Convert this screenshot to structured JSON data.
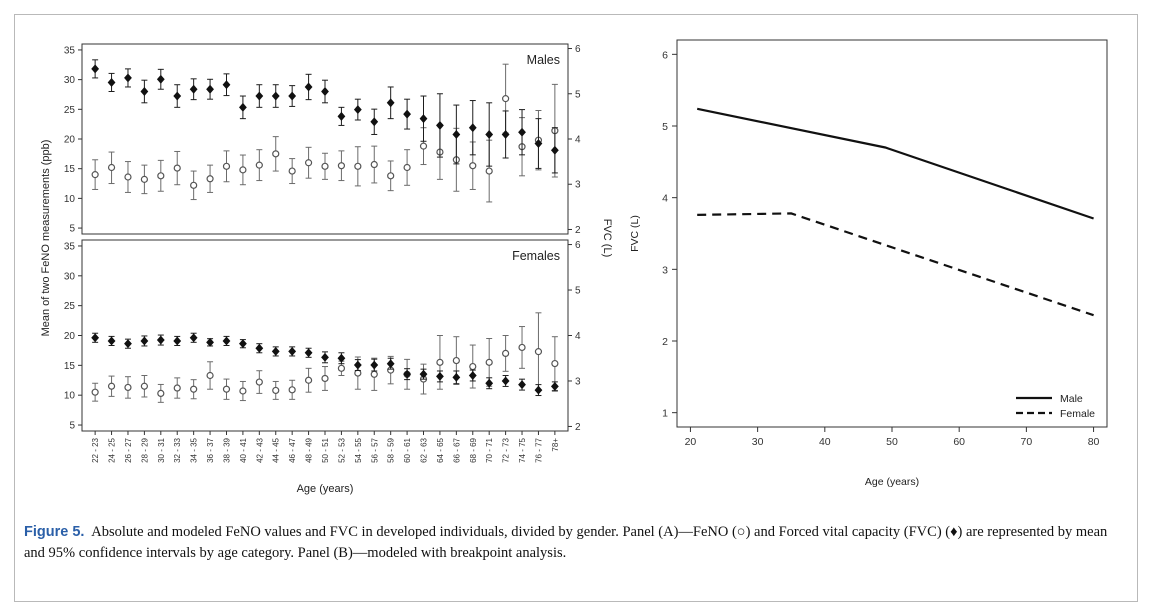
{
  "chart_data": [
    {
      "type": "scatter",
      "panel": "A-top",
      "title": "Males",
      "ylabel": "Mean of two FeNO measurements (ppb)",
      "y2label": "FVC (L)",
      "ylim": [
        4,
        36
      ],
      "y2lim": [
        1.9,
        6.1
      ],
      "yticks": [
        5,
        10,
        15,
        20,
        25,
        30,
        35
      ],
      "y2ticks": [
        2,
        3,
        4,
        5,
        6
      ],
      "series": [
        {
          "marker": "open-circle",
          "axis": "left",
          "values": [
            14.0,
            15.2,
            13.6,
            13.2,
            13.8,
            15.1,
            12.2,
            13.3,
            15.4,
            14.8,
            15.6,
            17.5,
            14.6,
            16.0,
            15.4,
            15.5,
            15.4,
            15.7,
            13.8,
            15.2,
            18.8,
            17.8,
            16.5,
            15.5,
            14.6,
            26.8,
            18.7,
            19.8,
            21.4
          ],
          "lower": [
            11.5,
            12.5,
            11.0,
            10.8,
            11.2,
            12.3,
            9.8,
            11.0,
            12.8,
            12.3,
            13.0,
            14.6,
            12.5,
            13.4,
            13.2,
            13.0,
            12.1,
            12.6,
            11.3,
            12.2,
            15.7,
            13.2,
            11.2,
            11.5,
            9.4,
            21.0,
            13.8,
            14.8,
            13.6
          ],
          "upper": [
            16.5,
            17.8,
            16.2,
            15.6,
            16.4,
            17.9,
            14.6,
            15.6,
            18.0,
            17.3,
            18.2,
            20.4,
            16.7,
            18.6,
            17.6,
            18.0,
            18.7,
            18.8,
            16.3,
            18.2,
            21.9,
            22.4,
            21.8,
            19.5,
            19.8,
            32.6,
            23.6,
            24.8,
            29.2
          ]
        },
        {
          "marker": "filled-diamond",
          "axis": "right",
          "values": [
            5.55,
            5.25,
            5.35,
            5.05,
            5.32,
            4.95,
            5.1,
            5.1,
            5.2,
            4.7,
            4.95,
            4.95,
            4.95,
            5.15,
            5.05,
            4.5,
            4.65,
            4.38,
            4.8,
            4.55,
            4.45,
            4.3,
            4.1,
            4.25,
            4.1,
            4.1,
            4.15,
            3.9,
            3.75
          ],
          "lower": [
            5.35,
            5.05,
            5.15,
            4.8,
            5.1,
            4.7,
            4.87,
            4.88,
            4.96,
            4.45,
            4.7,
            4.7,
            4.72,
            4.87,
            4.8,
            4.3,
            4.42,
            4.1,
            4.45,
            4.22,
            3.95,
            3.6,
            3.45,
            3.65,
            3.4,
            3.58,
            3.65,
            3.35,
            3.25
          ],
          "upper": [
            5.75,
            5.45,
            5.55,
            5.3,
            5.54,
            5.2,
            5.33,
            5.32,
            5.44,
            4.95,
            5.2,
            5.2,
            5.18,
            5.43,
            5.3,
            4.7,
            4.88,
            4.66,
            5.15,
            4.88,
            4.95,
            5.0,
            4.75,
            4.85,
            4.8,
            4.62,
            4.65,
            4.45,
            4.25
          ]
        }
      ]
    },
    {
      "type": "scatter",
      "panel": "A-bottom",
      "title": "Females",
      "xlabel": "Age (years)",
      "ylabel": "Mean of two FeNO measurements (ppb)",
      "y2label": "FVC (L)",
      "ylim": [
        4,
        36
      ],
      "y2lim": [
        1.9,
        6.1
      ],
      "yticks": [
        5,
        10,
        15,
        20,
        25,
        30,
        35
      ],
      "y2ticks": [
        2,
        3,
        4,
        5,
        6
      ],
      "categories": [
        "22 - 23",
        "24 - 25",
        "26 - 27",
        "28 - 29",
        "30 - 31",
        "32 - 33",
        "34 - 35",
        "36 - 37",
        "38 - 39",
        "40 - 41",
        "42 - 43",
        "44 - 45",
        "46 - 47",
        "48 - 49",
        "50 - 51",
        "52 - 53",
        "54 - 55",
        "56 - 57",
        "58 - 59",
        "60 - 61",
        "62 - 63",
        "64 - 65",
        "66 - 67",
        "68 - 69",
        "70 - 71",
        "72 - 73",
        "74 - 75",
        "76 - 77",
        "78+"
      ],
      "series": [
        {
          "marker": "open-circle",
          "axis": "left",
          "values": [
            10.5,
            11.5,
            11.3,
            11.5,
            10.3,
            11.2,
            11.0,
            13.3,
            11.0,
            10.7,
            12.2,
            10.8,
            10.9,
            12.5,
            12.8,
            14.5,
            13.7,
            13.5,
            14.2,
            13.5,
            12.7,
            15.5,
            15.8,
            14.8,
            15.5,
            17.0,
            18.0,
            17.3,
            15.3
          ],
          "lower": [
            9.0,
            9.8,
            9.5,
            9.7,
            8.8,
            9.5,
            9.4,
            11.0,
            9.3,
            9.1,
            10.3,
            9.3,
            9.3,
            10.5,
            10.8,
            13.3,
            11.0,
            10.8,
            11.9,
            11.0,
            10.2,
            11.0,
            11.8,
            11.2,
            11.5,
            14.0,
            14.5,
            10.8,
            10.8
          ],
          "upper": [
            12.0,
            13.2,
            13.1,
            13.3,
            11.8,
            12.9,
            12.6,
            15.6,
            12.7,
            12.3,
            14.1,
            12.3,
            12.5,
            14.5,
            14.8,
            15.7,
            16.4,
            16.2,
            16.5,
            16.0,
            15.2,
            20.0,
            19.8,
            18.4,
            19.5,
            20.0,
            21.5,
            23.8,
            19.8
          ]
        },
        {
          "marker": "filled-diamond",
          "axis": "right",
          "values": [
            3.95,
            3.88,
            3.82,
            3.88,
            3.9,
            3.88,
            3.95,
            3.85,
            3.88,
            3.82,
            3.72,
            3.65,
            3.65,
            3.62,
            3.52,
            3.5,
            3.35,
            3.35,
            3.38,
            3.15,
            3.15,
            3.1,
            3.08,
            3.12,
            2.95,
            3.0,
            2.92,
            2.8,
            2.88
          ],
          "lower": [
            3.85,
            3.78,
            3.72,
            3.77,
            3.79,
            3.78,
            3.85,
            3.77,
            3.78,
            3.73,
            3.62,
            3.55,
            3.55,
            3.52,
            3.4,
            3.38,
            3.23,
            3.22,
            3.26,
            3.03,
            3.04,
            2.98,
            2.94,
            3.0,
            2.83,
            2.88,
            2.8,
            2.68,
            2.78
          ],
          "upper": [
            4.05,
            3.98,
            3.92,
            3.99,
            4.01,
            3.98,
            4.05,
            3.93,
            3.98,
            3.91,
            3.82,
            3.75,
            3.75,
            3.72,
            3.64,
            3.62,
            3.47,
            3.48,
            3.5,
            3.27,
            3.26,
            3.22,
            3.22,
            3.24,
            3.07,
            3.12,
            3.04,
            2.92,
            2.98
          ]
        }
      ]
    },
    {
      "type": "line",
      "panel": "B",
      "xlabel": "Age (years)",
      "ylabel": "FVC (L)",
      "xlim": [
        18,
        82
      ],
      "ylim": [
        0.8,
        6.2
      ],
      "xticks": [
        20,
        30,
        40,
        50,
        60,
        70,
        80
      ],
      "yticks": [
        1,
        2,
        3,
        4,
        5,
        6
      ],
      "legend": "bottom-right",
      "series": [
        {
          "name": "Male",
          "style": "solid",
          "x": [
            21,
            49,
            80
          ],
          "y": [
            5.24,
            4.7,
            3.71
          ]
        },
        {
          "name": "Female",
          "style": "dashed",
          "x": [
            21,
            35,
            80
          ],
          "y": [
            3.76,
            3.78,
            2.36
          ]
        }
      ]
    }
  ],
  "caption": {
    "label": "Figure 5.",
    "text": "Absolute and modeled FeNO values and FVC in developed individuals, divided by gender. Panel (A)—FeNO (○) and Forced vital capacity (FVC) (♦) are represented by mean and 95% confidence intervals by age category. Panel (B)—modeled with breakpoint analysis."
  }
}
